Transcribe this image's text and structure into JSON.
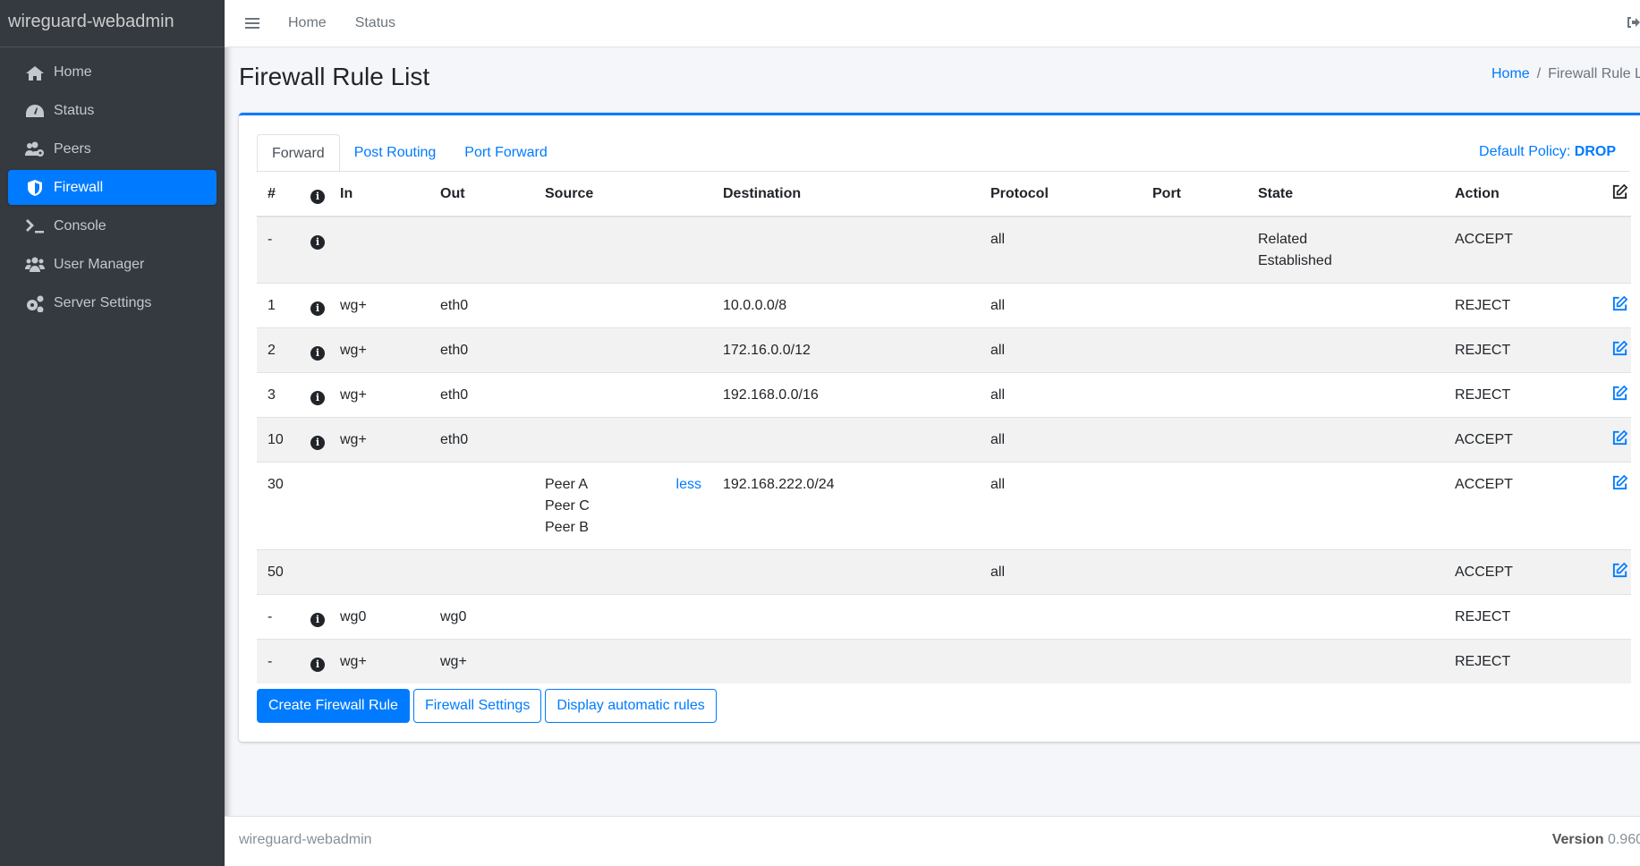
{
  "app": {
    "brand": "wireguard-webadmin"
  },
  "sidebar": {
    "items": [
      {
        "label": "Home",
        "icon": "home-icon"
      },
      {
        "label": "Status",
        "icon": "tachometer-icon"
      },
      {
        "label": "Peers",
        "icon": "users-cog-icon"
      },
      {
        "label": "Firewall",
        "icon": "shield-icon",
        "active": true
      },
      {
        "label": "Console",
        "icon": "terminal-icon"
      },
      {
        "label": "User Manager",
        "icon": "users-icon"
      },
      {
        "label": "Server Settings",
        "icon": "cogs-icon"
      }
    ]
  },
  "topbar": {
    "links": [
      "Home",
      "Status"
    ]
  },
  "page": {
    "title": "Firewall Rule List",
    "breadcrumb": [
      "Home",
      "Firewall Rule List"
    ]
  },
  "tabs": [
    "Forward",
    "Post Routing",
    "Port Forward"
  ],
  "policy": {
    "label": "Default Policy:",
    "value": "DROP"
  },
  "table": {
    "headers": [
      "#",
      "",
      "In",
      "Out",
      "Source",
      "Destination",
      "Protocol",
      "Port",
      "State",
      "Action"
    ],
    "rows": [
      {
        "num": "-",
        "info": true,
        "in": "",
        "out": "",
        "source": [],
        "less": "",
        "dest": "",
        "proto": "all",
        "port": "",
        "state": [
          "Related",
          "Established"
        ],
        "action": "ACCEPT",
        "edit": false
      },
      {
        "num": "1",
        "info": true,
        "in": "wg+",
        "out": "eth0",
        "source": [],
        "less": "",
        "dest": "10.0.0.0/8",
        "proto": "all",
        "port": "",
        "state": [],
        "action": "REJECT",
        "edit": true
      },
      {
        "num": "2",
        "info": true,
        "in": "wg+",
        "out": "eth0",
        "source": [],
        "less": "",
        "dest": "172.16.0.0/12",
        "proto": "all",
        "port": "",
        "state": [],
        "action": "REJECT",
        "edit": true
      },
      {
        "num": "3",
        "info": true,
        "in": "wg+",
        "out": "eth0",
        "source": [],
        "less": "",
        "dest": "192.168.0.0/16",
        "proto": "all",
        "port": "",
        "state": [],
        "action": "REJECT",
        "edit": true
      },
      {
        "num": "10",
        "info": true,
        "in": "wg+",
        "out": "eth0",
        "source": [],
        "less": "",
        "dest": "",
        "proto": "all",
        "port": "",
        "state": [],
        "action": "ACCEPT",
        "edit": true
      },
      {
        "num": "30",
        "info": false,
        "in": "",
        "out": "",
        "source": [
          "Peer A",
          "Peer C",
          "Peer B"
        ],
        "less": "less",
        "dest": "192.168.222.0/24",
        "proto": "all",
        "port": "",
        "state": [],
        "action": "ACCEPT",
        "edit": true
      },
      {
        "num": "50",
        "info": false,
        "in": "",
        "out": "",
        "source": [],
        "less": "",
        "dest": "",
        "proto": "all",
        "port": "",
        "state": [],
        "action": "ACCEPT",
        "edit": true
      },
      {
        "num": "-",
        "info": true,
        "in": "wg0",
        "out": "wg0",
        "source": [],
        "less": "",
        "dest": "",
        "proto": "",
        "port": "",
        "state": [],
        "action": "REJECT",
        "edit": false
      },
      {
        "num": "-",
        "info": true,
        "in": "wg+",
        "out": "wg+",
        "source": [],
        "less": "",
        "dest": "",
        "proto": "",
        "port": "",
        "state": [],
        "action": "REJECT",
        "edit": false
      }
    ]
  },
  "buttons": {
    "create": "Create Firewall Rule",
    "settings": "Firewall Settings",
    "auto": "Display automatic rules"
  },
  "footer": {
    "left": "wireguard-webadmin",
    "version_label": "Version",
    "version": "0.960"
  },
  "colors": {
    "accent": "#007bff",
    "sidebar": "#343a40"
  }
}
